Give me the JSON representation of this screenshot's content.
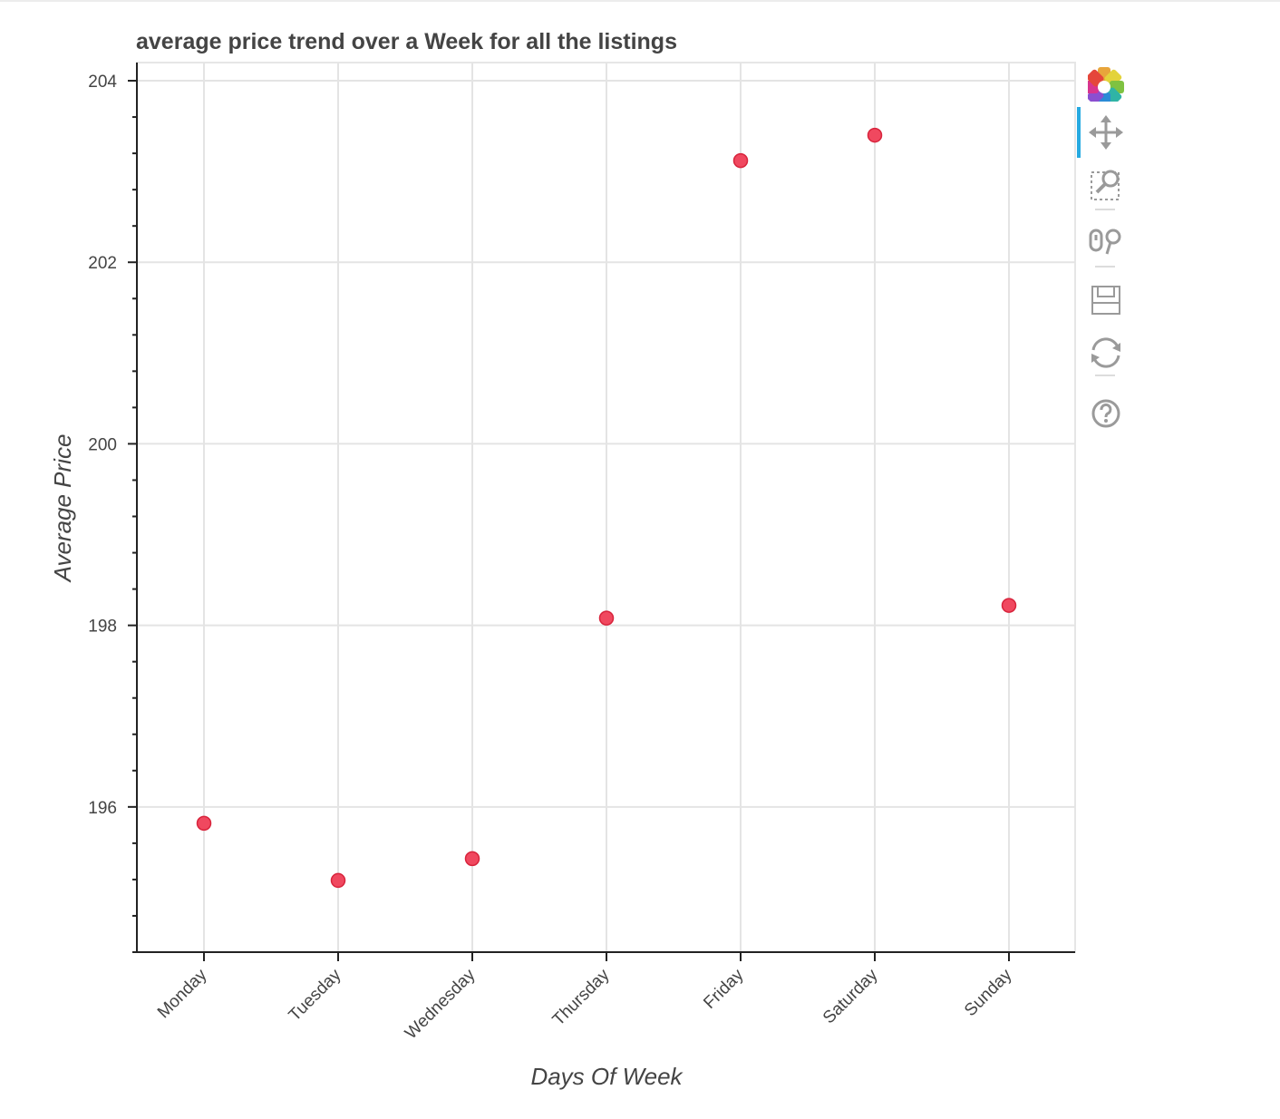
{
  "chart_data": {
    "type": "scatter",
    "title": "average price trend over a Week for all the listings",
    "xlabel": "Days Of Week",
    "ylabel": "Average Price",
    "categories": [
      "Monday",
      "Tuesday",
      "Wednesday",
      "Thursday",
      "Friday",
      "Saturday",
      "Sunday"
    ],
    "values": [
      195.82,
      195.19,
      195.43,
      198.08,
      203.12,
      203.4,
      198.22
    ],
    "ylim": [
      194.4,
      204.2
    ],
    "y_ticks": [
      196,
      198,
      200,
      202,
      204
    ],
    "grid": true,
    "marker_color": "#f0485f",
    "marker_edge_color": "#d8243c"
  },
  "toolbar": {
    "tools": [
      {
        "icon": "bokeh-logo-icon",
        "label": "Bokeh"
      },
      {
        "icon": "pan-icon",
        "label": "Pan",
        "active": true
      },
      {
        "icon": "box-zoom-icon",
        "label": "Box Zoom"
      },
      {
        "icon": "wheel-zoom-icon",
        "label": "Wheel Zoom"
      },
      {
        "icon": "save-icon",
        "label": "Save"
      },
      {
        "icon": "reset-icon",
        "label": "Reset"
      },
      {
        "icon": "help-icon",
        "label": "Help"
      }
    ]
  }
}
